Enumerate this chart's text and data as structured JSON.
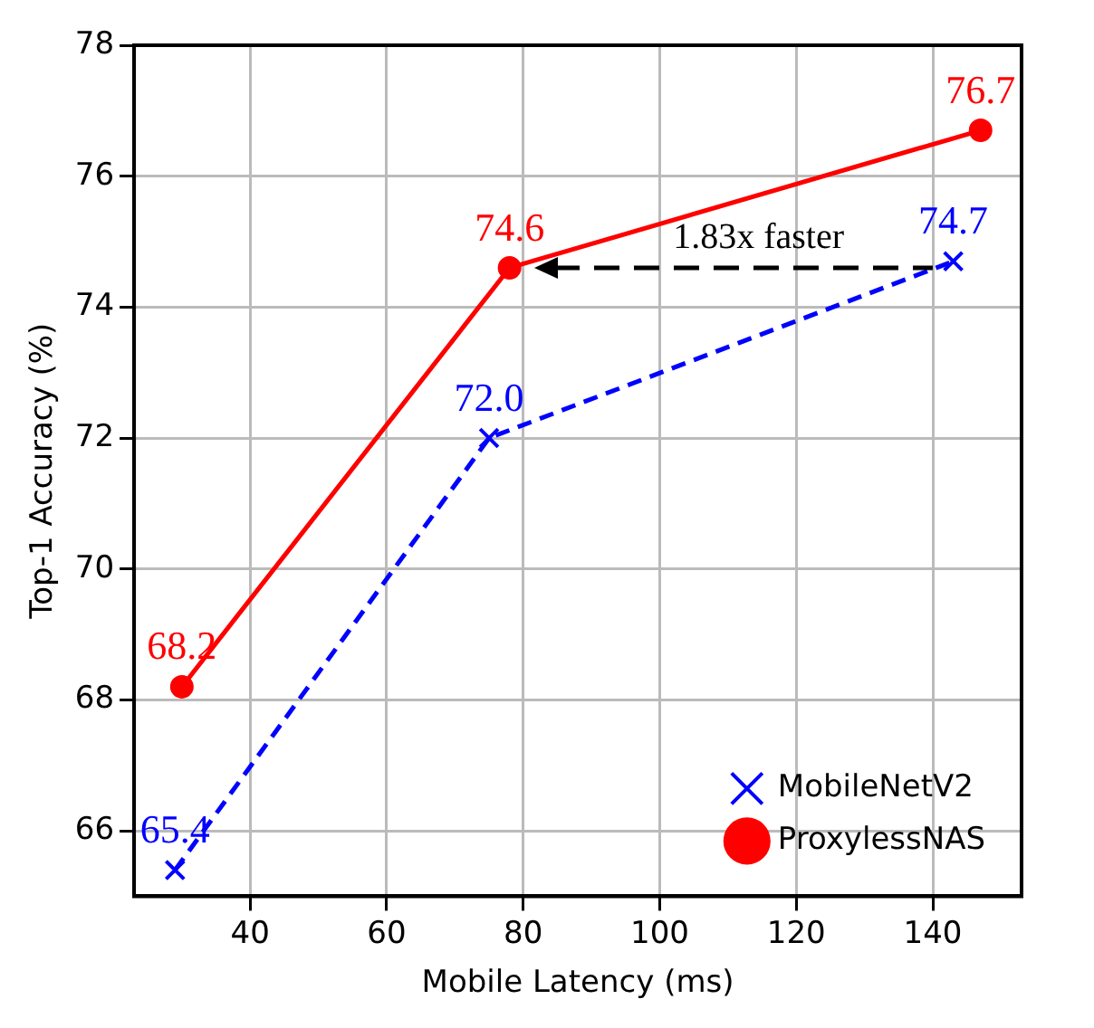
{
  "chart_data": {
    "type": "line",
    "xlabel": "Mobile Latency (ms)",
    "ylabel": "Top-1 Accuracy (%)",
    "xlim": [
      23,
      153
    ],
    "xticks": [
      40,
      60,
      80,
      100,
      120,
      140
    ],
    "ylim": [
      65,
      78
    ],
    "yticks": [
      66,
      68,
      70,
      72,
      74,
      76,
      78
    ],
    "series": [
      {
        "name": "MobileNetV2",
        "color": "#0000ff",
        "x": [
          29,
          75,
          143
        ],
        "values": [
          65.4,
          72.0,
          74.7
        ],
        "value_labels": [
          "65.4",
          "72.0",
          "74.7"
        ],
        "marker": "cross",
        "line_style": "dashed"
      },
      {
        "name": "ProxylessNAS",
        "color": "#ff0000",
        "x": [
          30,
          78,
          147
        ],
        "values": [
          68.2,
          74.6,
          76.7
        ],
        "value_labels": [
          "68.2",
          "74.6",
          "76.7"
        ],
        "marker": "circle",
        "line_style": "solid"
      }
    ],
    "grid": true,
    "legend": "bottom right",
    "annotations": [
      "1.83x faster"
    ]
  }
}
